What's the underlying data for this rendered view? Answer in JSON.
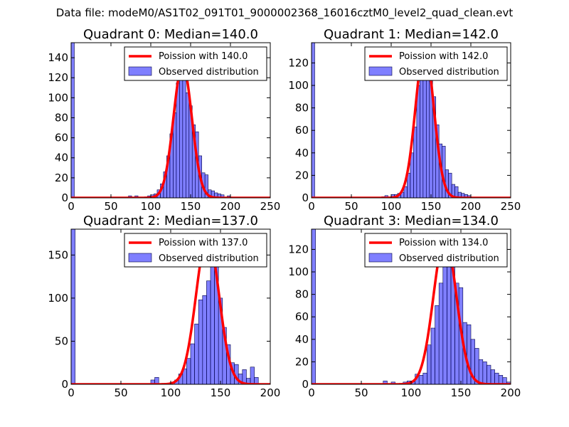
{
  "suptitle": "Data file: modeM0/AS1T02_091T01_9000002368_16016cztM0_level2_quad_clean.evt",
  "chart_data": [
    {
      "type": "bar",
      "title": "Quadrant 0: Median=140.0",
      "median": 140.0,
      "xlim": [
        0,
        250
      ],
      "ylim": [
        0,
        155
      ],
      "xticks": [
        0,
        50,
        100,
        150,
        200,
        250
      ],
      "yticks": [
        0,
        20,
        40,
        60,
        80,
        100,
        120,
        140
      ],
      "legend": [
        "Poission with 140.0",
        "Observed distribution"
      ],
      "curve": {
        "mean": 140.0,
        "peak": 133,
        "sigma": 11.5
      },
      "bin_width": 4,
      "bins": [
        [
          0,
          155
        ],
        [
          72,
          2
        ],
        [
          80,
          2
        ],
        [
          92,
          1
        ],
        [
          96,
          2
        ],
        [
          100,
          3
        ],
        [
          104,
          4
        ],
        [
          108,
          8
        ],
        [
          112,
          14
        ],
        [
          116,
          26
        ],
        [
          120,
          42
        ],
        [
          124,
          64
        ],
        [
          128,
          85
        ],
        [
          132,
          115
        ],
        [
          136,
          130
        ],
        [
          140,
          118
        ],
        [
          144,
          105
        ],
        [
          148,
          92
        ],
        [
          152,
          73
        ],
        [
          156,
          66
        ],
        [
          160,
          42
        ],
        [
          164,
          25
        ],
        [
          168,
          23
        ],
        [
          172,
          8
        ],
        [
          176,
          7
        ],
        [
          180,
          5
        ],
        [
          184,
          4
        ],
        [
          188,
          3
        ],
        [
          196,
          2
        ]
      ]
    },
    {
      "type": "bar",
      "title": "Quadrant 1: Median=142.0",
      "median": 142.0,
      "xlim": [
        0,
        250
      ],
      "ylim": [
        0,
        138
      ],
      "xticks": [
        0,
        50,
        100,
        150,
        200,
        250
      ],
      "yticks": [
        0,
        20,
        40,
        60,
        80,
        100,
        120
      ],
      "legend": [
        "Poission with 142.0",
        "Observed distribution"
      ],
      "curve": {
        "mean": 142.0,
        "peak": 133,
        "sigma": 11.5
      },
      "bin_width": 4,
      "bins": [
        [
          0,
          138
        ],
        [
          88,
          1
        ],
        [
          92,
          2
        ],
        [
          100,
          3
        ],
        [
          104,
          3
        ],
        [
          108,
          4
        ],
        [
          112,
          5
        ],
        [
          116,
          10
        ],
        [
          120,
          22
        ],
        [
          124,
          40
        ],
        [
          128,
          63
        ],
        [
          132,
          100
        ],
        [
          136,
          110
        ],
        [
          140,
          132
        ],
        [
          144,
          120
        ],
        [
          148,
          105
        ],
        [
          152,
          90
        ],
        [
          156,
          65
        ],
        [
          160,
          48
        ],
        [
          164,
          46
        ],
        [
          168,
          25
        ],
        [
          172,
          22
        ],
        [
          176,
          12
        ],
        [
          180,
          10
        ],
        [
          184,
          5
        ],
        [
          188,
          4
        ],
        [
          192,
          3
        ],
        [
          196,
          2
        ]
      ]
    },
    {
      "type": "bar",
      "title": "Quadrant 2: Median=137.0",
      "median": 137.0,
      "xlim": [
        0,
        200
      ],
      "ylim": [
        0,
        180
      ],
      "xticks": [
        0,
        50,
        100,
        150,
        200
      ],
      "yticks": [
        0,
        50,
        100,
        150
      ],
      "legend": [
        "Poission with 137.0",
        "Observed distribution"
      ],
      "curve": {
        "mean": 137.0,
        "peak": 172,
        "sigma": 11.5
      },
      "bin_width": 4,
      "bins": [
        [
          0,
          180
        ],
        [
          80,
          5
        ],
        [
          84,
          8
        ],
        [
          104,
          5
        ],
        [
          108,
          12
        ],
        [
          112,
          18
        ],
        [
          116,
          30
        ],
        [
          120,
          47
        ],
        [
          124,
          70
        ],
        [
          128,
          98
        ],
        [
          132,
          103
        ],
        [
          136,
          120
        ],
        [
          140,
          145
        ],
        [
          144,
          158
        ],
        [
          148,
          100
        ],
        [
          152,
          66
        ],
        [
          156,
          46
        ],
        [
          160,
          25
        ],
        [
          164,
          23
        ],
        [
          168,
          12
        ],
        [
          172,
          17
        ],
        [
          176,
          7
        ],
        [
          180,
          20
        ],
        [
          184,
          8
        ]
      ]
    },
    {
      "type": "bar",
      "title": "Quadrant 3: Median=134.0",
      "median": 134.0,
      "xlim": [
        0,
        200
      ],
      "ylim": [
        0,
        138
      ],
      "xticks": [
        0,
        50,
        100,
        150,
        200
      ],
      "yticks": [
        0,
        20,
        40,
        60,
        80,
        100,
        120
      ],
      "legend": [
        "Poission with 134.0",
        "Observed distribution"
      ],
      "curve": {
        "mean": 134.0,
        "peak": 130,
        "sigma": 11.5
      },
      "bin_width": 4,
      "bins": [
        [
          0,
          138
        ],
        [
          72,
          3
        ],
        [
          80,
          2
        ],
        [
          92,
          2
        ],
        [
          96,
          3
        ],
        [
          100,
          3
        ],
        [
          104,
          9
        ],
        [
          108,
          8
        ],
        [
          112,
          10
        ],
        [
          116,
          35
        ],
        [
          120,
          50
        ],
        [
          124,
          70
        ],
        [
          128,
          90
        ],
        [
          132,
          128
        ],
        [
          136,
          120
        ],
        [
          140,
          105
        ],
        [
          144,
          90
        ],
        [
          148,
          86
        ],
        [
          152,
          55
        ],
        [
          156,
          53
        ],
        [
          160,
          40
        ],
        [
          164,
          32
        ],
        [
          168,
          22
        ],
        [
          172,
          20
        ],
        [
          176,
          17
        ],
        [
          180,
          13
        ],
        [
          184,
          10
        ],
        [
          188,
          8
        ],
        [
          192,
          6
        ],
        [
          196,
          2
        ]
      ]
    }
  ]
}
